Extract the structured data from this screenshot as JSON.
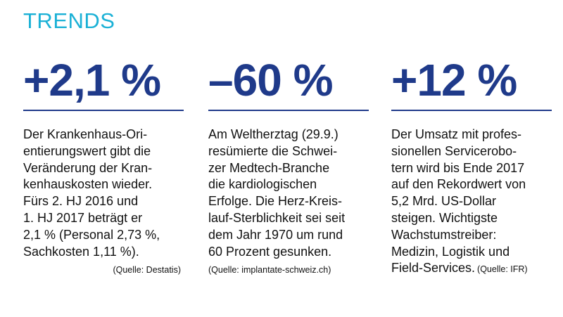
{
  "header": {
    "title": "TRENDS"
  },
  "columns": [
    {
      "figure": "+2,1 %",
      "lines": [
        "Der Krankenhaus-Ori-",
        "entierungswert gibt die",
        "Veränderung der Kran-",
        "kenhauskosten wieder.",
        "Fürs 2. HJ 2016 und",
        "1. HJ 2017 beträgt er",
        "2,1 % (Personal 2,73 %,",
        "Sachkosten 1,11 %)."
      ],
      "source": "(Quelle: Destatis)"
    },
    {
      "figure": "–60 %",
      "lines": [
        "Am Weltherztag (29.9.)",
        "resümierte die Schwei-",
        "zer Medtech-Branche",
        "die kardiologischen",
        "Erfolge. Die Herz-Kreis-",
        "lauf-Sterblichkeit sei seit",
        "dem Jahr 1970 um rund",
        "60 Prozent gesunken."
      ],
      "source": "(Quelle: implantate-schweiz.ch)"
    },
    {
      "figure": "+12 %",
      "lines": [
        "Der Umsatz mit profes-",
        "sionellen Servicerobo-",
        "tern wird bis Ende 2017",
        "auf den Rekordwert von",
        "5,2 Mrd. US-Dollar",
        "steigen. Wichtigste",
        "Wachstumstreiber:",
        "Medizin, Logistik und",
        "Field-Services."
      ],
      "source": "(Quelle: IFR)"
    }
  ]
}
